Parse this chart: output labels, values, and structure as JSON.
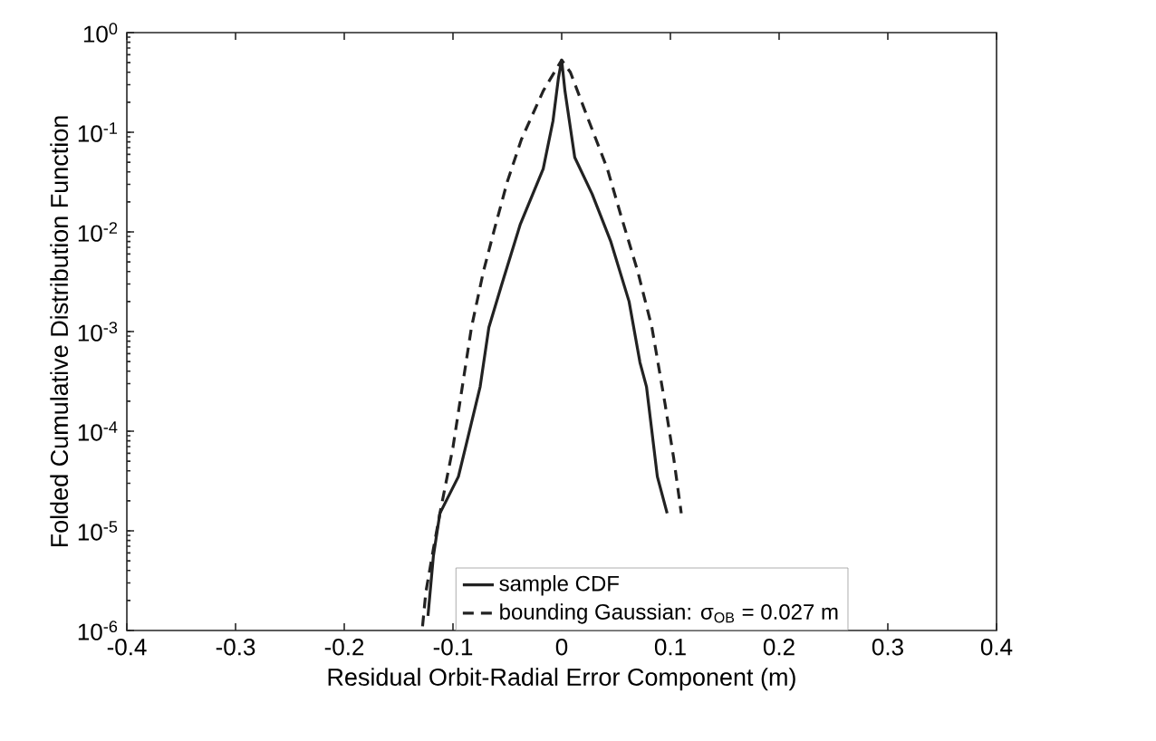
{
  "chart_data": {
    "type": "line",
    "xlabel": "Residual Orbit-Radial Error Component (m)",
    "ylabel": "Folded Cumulative Distribution Function",
    "log": "y",
    "xlim": [
      -0.4,
      0.4
    ],
    "xticks": [
      -0.4,
      -0.3,
      -0.2,
      -0.1,
      0,
      0.1,
      0.2,
      0.3,
      0.4
    ],
    "ylim": [
      1e-06,
      1
    ],
    "yticks": [
      {
        "value": 1e-06,
        "label": "10$^{-6}$"
      },
      {
        "value": 1e-05,
        "label": "10$^{-5}$"
      },
      {
        "value": 0.0001,
        "label": "10$^{-4}$"
      },
      {
        "value": 0.001,
        "label": "10$^{-3}$"
      },
      {
        "value": 0.01,
        "label": "10$^{-2}$"
      },
      {
        "value": 0.1,
        "label": "10$^{-1}$"
      },
      {
        "value": 1,
        "label": "10$^{0}$"
      }
    ],
    "legend": "bottom",
    "series": [
      {
        "name": "sample CDF",
        "color": "#222222",
        "line_style": "solid",
        "x": [
          -0.123,
          -0.118,
          -0.112,
          -0.095,
          -0.087,
          -0.075,
          -0.067,
          -0.055,
          -0.038,
          -0.017,
          -0.008,
          -0.003,
          0,
          0.003,
          0.012,
          0.028,
          0.045,
          0.062,
          0.072,
          0.078,
          0.088,
          0.097
        ],
        "values": [
          1.4e-06,
          5.6e-06,
          1.5e-05,
          3.5e-05,
          8e-05,
          0.00028,
          0.0011,
          0.003,
          0.012,
          0.043,
          0.13,
          0.35,
          0.53,
          0.26,
          0.056,
          0.024,
          0.0081,
          0.002,
          0.00049,
          0.00028,
          3.5e-05,
          1.5e-05
        ]
      },
      {
        "name": "bounding Gaussian: σ$_{OB}$ = 0.027 m",
        "color": "#222222",
        "line_style": "dashed",
        "x": [
          -0.128,
          -0.125,
          -0.118,
          -0.112,
          -0.1,
          -0.083,
          -0.072,
          -0.062,
          -0.05,
          -0.037,
          -0.017,
          0,
          0.008,
          0.025,
          0.042,
          0.055,
          0.07,
          0.083,
          0.095,
          0.103,
          0.11
        ],
        "values": [
          1.1e-06,
          2.4e-06,
          6.6e-06,
          1.5e-05,
          6.9e-05,
          0.0011,
          0.004,
          0.0105,
          0.032,
          0.085,
          0.26,
          0.53,
          0.4,
          0.13,
          0.043,
          0.014,
          0.004,
          0.0011,
          0.00019,
          5.4e-05,
          1.5e-05
        ]
      }
    ]
  }
}
